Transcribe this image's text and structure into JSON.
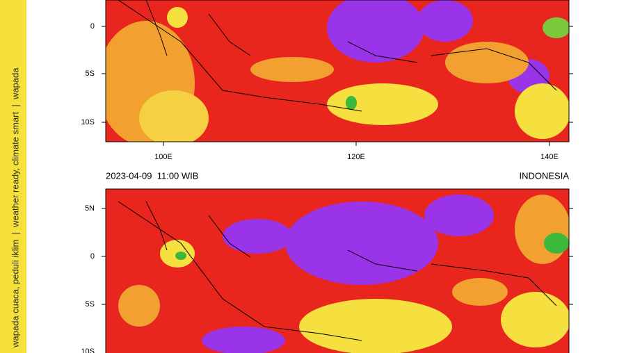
{
  "sidebar": {
    "text": "wapada cuaca, peduli iklim  |  weather ready, climate smart  |  wapada"
  },
  "panels": [
    {
      "lat_labels": [
        "0",
        "5S",
        "10S"
      ],
      "lon_labels": [
        "100E",
        "120E",
        "140E"
      ]
    },
    {
      "timestamp": "2023-04-09  11:00 WIB",
      "region": "INDONESIA",
      "lat_labels": [
        "5N",
        "0",
        "5S",
        "10S"
      ]
    }
  ]
}
